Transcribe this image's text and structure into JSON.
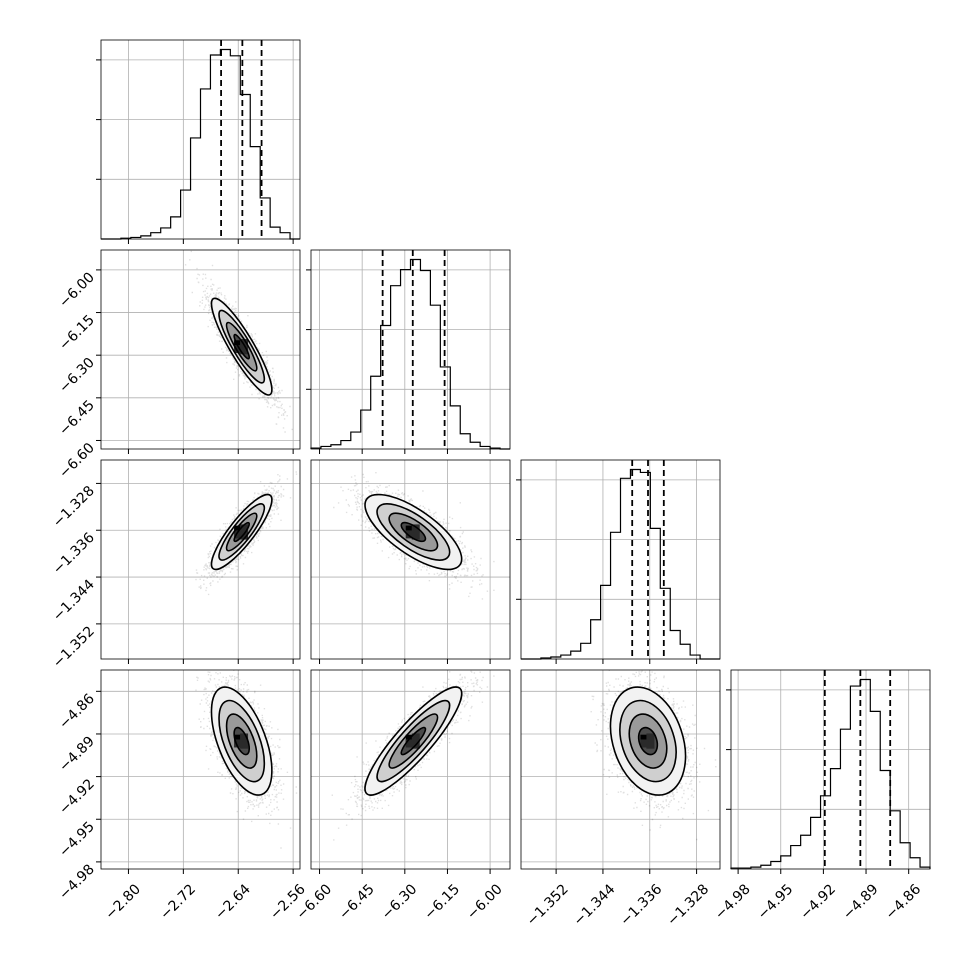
{
  "chart_data": {
    "type": "corner",
    "parameters": [
      {
        "range": [
          -2.84,
          -2.55
        ],
        "ticks": [
          -2.8,
          -2.72,
          -2.64,
          -2.56
        ],
        "tick_labels": [
          "−2.80",
          "−2.72",
          "−2.64",
          "−2.56"
        ]
      },
      {
        "range": [
          -6.63,
          -5.93
        ],
        "ticks": [
          -6.6,
          -6.45,
          -6.3,
          -6.15,
          -6.0
        ],
        "tick_labels": [
          "−6.60",
          "−6.45",
          "−6.30",
          "−6.15",
          "−6.00"
        ]
      },
      {
        "range": [
          -1.358,
          -1.324
        ],
        "ticks": [
          -1.352,
          -1.344,
          -1.336,
          -1.328
        ],
        "tick_labels": [
          "−1.352",
          "−1.344",
          "−1.336",
          "−1.328"
        ]
      },
      {
        "range": [
          -4.985,
          -4.845
        ],
        "ticks": [
          -4.98,
          -4.95,
          -4.92,
          -4.89,
          -4.86
        ],
        "tick_labels": [
          "−4.98",
          "−4.95",
          "−4.92",
          "−4.89",
          "−4.86"
        ]
      }
    ],
    "marginals": [
      {
        "quantiles": [
          -2.665,
          -2.634,
          -2.606
        ],
        "counts": [
          0,
          0,
          1,
          2,
          4,
          8,
          14,
          28,
          62,
          128,
          190,
          233,
          240,
          232,
          183,
          117,
          52,
          15,
          8,
          0
        ]
      },
      {
        "quantiles": [
          -6.378,
          -6.272,
          -6.16
        ],
        "counts": [
          1,
          3,
          5,
          10,
          20,
          46,
          86,
          146,
          193,
          212,
          224,
          211,
          170,
          97,
          51,
          18,
          8,
          3,
          1,
          0
        ]
      },
      {
        "quantiles": [
          -1.339,
          -1.3363,
          -1.3336
        ],
        "counts": [
          0,
          0,
          1,
          2,
          4,
          8,
          16,
          40,
          75,
          129,
          184,
          193,
          190,
          133,
          72,
          29,
          15,
          4,
          0,
          0
        ]
      },
      {
        "quantiles": [
          -4.919,
          -4.894,
          -4.873
        ],
        "counts": [
          1,
          1,
          2,
          4,
          8,
          14,
          25,
          36,
          55,
          78,
          107,
          149,
          195,
          202,
          168,
          105,
          62,
          28,
          12,
          2
        ]
      }
    ],
    "pairs": [
      {
        "x": 0,
        "y": 1,
        "mean": [
          -2.635,
          -6.27
        ],
        "sd": [
          0.022,
          0.085
        ],
        "rho": -0.89
      },
      {
        "x": 0,
        "y": 2,
        "mean": [
          -2.635,
          -1.3363
        ],
        "sd": [
          0.022,
          0.0032
        ],
        "rho": 0.86
      },
      {
        "x": 1,
        "y": 2,
        "mean": [
          -6.27,
          -1.3363
        ],
        "sd": [
          0.085,
          0.0032
        ],
        "rho": -0.72
      },
      {
        "x": 0,
        "y": 3,
        "mean": [
          -2.635,
          -4.895
        ],
        "sd": [
          0.022,
          0.019
        ],
        "rho": -0.55
      },
      {
        "x": 1,
        "y": 3,
        "mean": [
          -6.27,
          -4.895
        ],
        "sd": [
          0.085,
          0.019
        ],
        "rho": 0.88
      },
      {
        "x": 2,
        "y": 3,
        "mean": [
          -1.3363,
          -4.895
        ],
        "sd": [
          0.0032,
          0.019
        ],
        "rho": -0.28
      }
    ],
    "grid": true
  }
}
